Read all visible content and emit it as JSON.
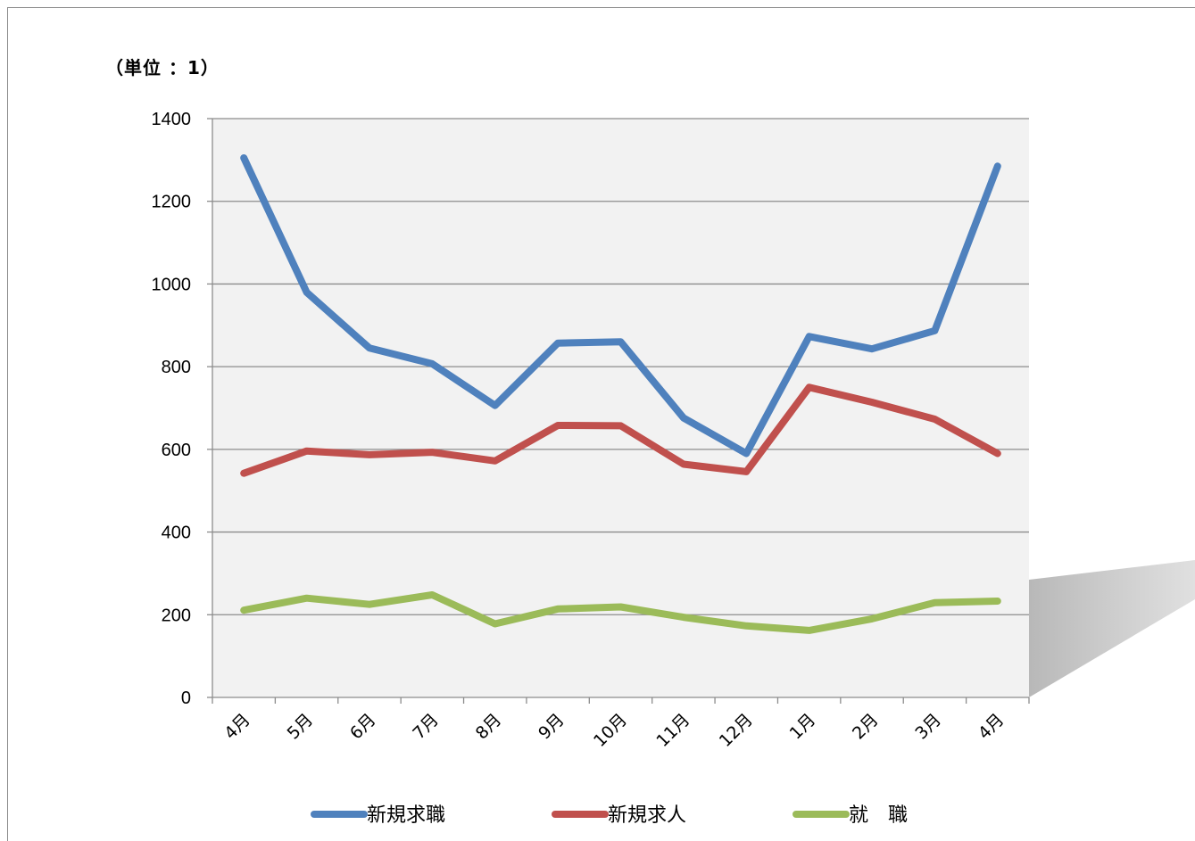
{
  "unit_label": "（単位 ：1）",
  "chart_data": {
    "type": "line",
    "title": "",
    "xlabel": "",
    "ylabel": "",
    "ylim": [
      0,
      1400
    ],
    "yticks": [
      0,
      200,
      400,
      600,
      800,
      1000,
      1200,
      1400
    ],
    "grid": true,
    "legend_position": "bottom",
    "plot_background": "#f2f2f2",
    "categories": [
      "4月",
      "5月",
      "6月",
      "7月",
      "8月",
      "9月",
      "10月",
      "11月",
      "12月",
      "1月",
      "2月",
      "3月",
      "4月"
    ],
    "series": [
      {
        "name": "新規求職",
        "color": "#4f81bd",
        "values": [
          1305,
          980,
          845,
          807,
          706,
          857,
          860,
          676,
          590,
          873,
          843,
          887,
          1285
        ]
      },
      {
        "name": "新規求人",
        "color": "#c0504d",
        "values": [
          542,
          596,
          587,
          593,
          572,
          658,
          657,
          564,
          546,
          750,
          714,
          673,
          590
        ]
      },
      {
        "name": "就　職",
        "color": "#9bbb59",
        "values": [
          211,
          240,
          225,
          248,
          178,
          214,
          219,
          194,
          173,
          162,
          190,
          229,
          233
        ]
      }
    ]
  }
}
